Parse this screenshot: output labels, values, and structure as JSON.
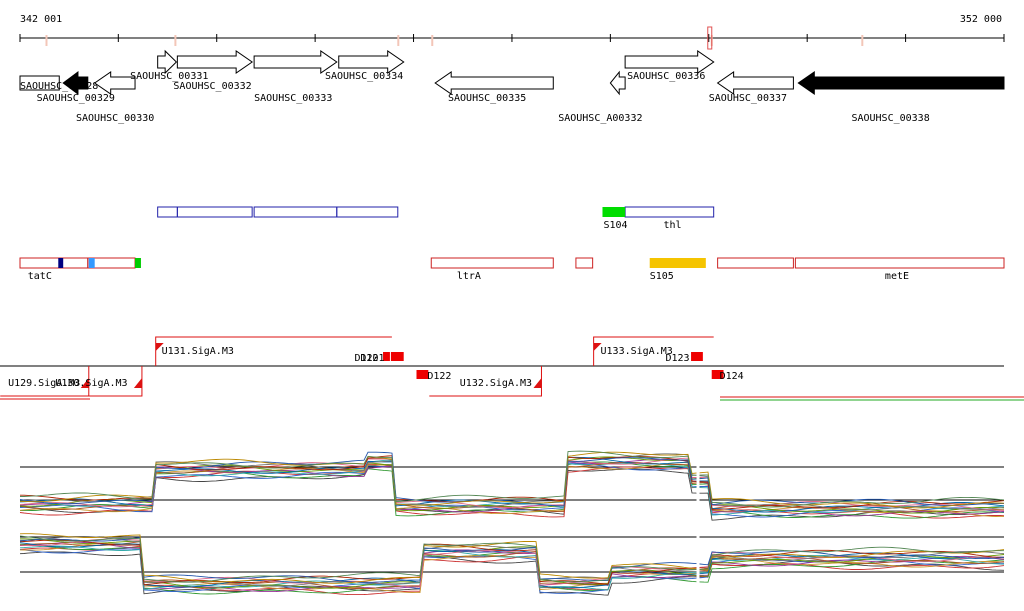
{
  "ruler": {
    "start_label": "342 001",
    "end_label": "352 000",
    "start": 342001,
    "end": 352000,
    "ticks": [
      342001,
      343000,
      344000,
      345000,
      346000,
      347000,
      348000,
      349000,
      350000,
      351000,
      352000
    ],
    "marks": [
      342260,
      343570,
      345835,
      346180,
      349020,
      350550
    ],
    "highlight_box": 349000
  },
  "genes": [
    {
      "label": "SAOUHSC_00328",
      "start": 342001,
      "end": 342400,
      "strand": "box",
      "fill": "white",
      "lane": 1,
      "label_pos": [
        342001,
        1
      ]
    },
    {
      "label": "SAOUHSC_00329",
      "start": 342440,
      "end": 342690,
      "strand": "-",
      "fill": "black",
      "lane": 1,
      "label_pos": [
        342170,
        2
      ]
    },
    {
      "label": "SAOUHSC_00330",
      "start": 342760,
      "end": 343170,
      "strand": "-",
      "fill": "white",
      "lane": 1,
      "label_pos": [
        342570,
        3
      ]
    },
    {
      "label": "SAOUHSC_00331",
      "start": 343400,
      "end": 343590,
      "strand": "+",
      "fill": "white",
      "lane": 0,
      "label_pos": [
        343120,
        0
      ]
    },
    {
      "label": "SAOUHSC_00332",
      "start": 343600,
      "end": 344360,
      "strand": "+",
      "fill": "white",
      "lane": 0,
      "label_pos": [
        343560,
        1
      ]
    },
    {
      "label": "SAOUHSC_00333",
      "start": 344380,
      "end": 345220,
      "strand": "+",
      "fill": "white",
      "lane": 0,
      "label_pos": [
        344380,
        2
      ]
    },
    {
      "label": "SAOUHSC_00334",
      "start": 345240,
      "end": 345900,
      "strand": "+",
      "fill": "white",
      "lane": 0,
      "label_pos": [
        345100,
        0
      ]
    },
    {
      "label": "SAOUHSC_00335",
      "start": 346220,
      "end": 347420,
      "strand": "-",
      "fill": "white",
      "lane": 1,
      "label_pos": [
        346350,
        2
      ]
    },
    {
      "label": "SAOUHSC_A00332",
      "start": 348000,
      "end": 348150,
      "strand": "-",
      "fill": "white",
      "lane": 1,
      "label_pos": [
        347470,
        3
      ]
    },
    {
      "label": "SAOUHSC_00336",
      "start": 348150,
      "end": 349050,
      "strand": "+",
      "fill": "white",
      "lane": 0,
      "label_pos": [
        348170,
        0
      ]
    },
    {
      "label": "SAOUHSC_00337",
      "start": 349090,
      "end": 349860,
      "strand": "-",
      "fill": "white",
      "lane": 1,
      "label_pos": [
        349000,
        2
      ]
    },
    {
      "label": "SAOUHSC_00338",
      "start": 349910,
      "end": 352000,
      "strand": "-",
      "fill": "black",
      "lane": 1,
      "label_pos": [
        350450,
        3
      ]
    }
  ],
  "blue_segments": [
    {
      "start": 343400,
      "end": 343600
    },
    {
      "start": 343600,
      "end": 344360
    },
    {
      "start": 344380,
      "end": 345220
    },
    {
      "start": 345220,
      "end": 345840
    },
    {
      "start": 348150,
      "end": 349050
    }
  ],
  "blue_labels": [
    {
      "label": "S104",
      "pos": 347930
    },
    {
      "label": "thl",
      "pos": 348540
    }
  ],
  "green_box": {
    "start": 347920,
    "end": 348150
  },
  "red_segments": [
    {
      "start": 342001,
      "end": 342400
    },
    {
      "start": 342400,
      "end": 342690
    },
    {
      "start": 342690,
      "end": 343170
    },
    {
      "start": 346180,
      "end": 347420
    },
    {
      "start": 347650,
      "end": 347820
    },
    {
      "start": 349090,
      "end": 349860
    },
    {
      "start": 349880,
      "end": 352000
    }
  ],
  "red_labels": [
    {
      "label": "tatC",
      "pos": 342080
    },
    {
      "label": "ltrA",
      "pos": 346440
    },
    {
      "label": "S105",
      "pos": 348400
    },
    {
      "label": "metE",
      "pos": 350790
    }
  ],
  "red_fills": [
    {
      "start": 342390,
      "end": 342440,
      "color": "#000080"
    },
    {
      "start": 342700,
      "end": 342760,
      "color": "#3399ff"
    },
    {
      "start": 343170,
      "end": 343230,
      "color": "#00cc00"
    },
    {
      "start": 348400,
      "end": 348970,
      "color": "#f5c400"
    }
  ],
  "units": [
    {
      "label": "U129.SigA.M3",
      "start": 341800,
      "end": 342700,
      "level": "low",
      "label_pos": 341880
    },
    {
      "label": "U130.SigA.M3",
      "start": 342700,
      "end": 343240,
      "level": "low",
      "label_pos": 342360
    },
    {
      "label": "U131.SigA.M3",
      "start": 343380,
      "end": 345780,
      "level": "high",
      "label_pos": 343440
    },
    {
      "label": "U132.SigA.M3",
      "start": 346160,
      "end": 347300,
      "level": "low",
      "label_pos": 346470
    },
    {
      "label": "U133.SigA.M3",
      "start": 347830,
      "end": 349050,
      "level": "high",
      "label_pos": 347900
    }
  ],
  "down_boxes": [
    {
      "label": "D120",
      "start": 345690,
      "end": 345760,
      "label_pos": 345400
    },
    {
      "label": "D121",
      "start": 345770,
      "end": 345900,
      "label_pos": 345460
    },
    {
      "label": "D122",
      "start": 346030,
      "end": 346150,
      "label_pos": 346140
    },
    {
      "label": "D123",
      "start": 348820,
      "end": 348940,
      "label_pos": 348560
    },
    {
      "label": "D124",
      "start": 349030,
      "end": 349150,
      "label_pos": 349110
    }
  ],
  "expression": {
    "panel1_segments": [
      {
        "start": 342001,
        "end": 343350,
        "level": 0.25
      },
      {
        "start": 343350,
        "end": 345500,
        "level": 0.78
      },
      {
        "start": 345500,
        "end": 345800,
        "level": 0.9
      },
      {
        "start": 345800,
        "end": 347550,
        "level": 0.22
      },
      {
        "start": 347550,
        "end": 348800,
        "level": 0.9
      },
      {
        "start": 348800,
        "end": 349000,
        "level": 0.6
      },
      {
        "start": 349000,
        "end": 352000,
        "level": 0.18
      }
    ],
    "panel2_segments": [
      {
        "start": 342001,
        "end": 343230,
        "level": 0.72
      },
      {
        "start": 343230,
        "end": 346100,
        "level": 0.12
      },
      {
        "start": 346100,
        "end": 347250,
        "level": 0.6
      },
      {
        "start": 347250,
        "end": 348000,
        "level": 0.12
      },
      {
        "start": 348000,
        "end": 349000,
        "level": 0.3
      },
      {
        "start": 349000,
        "end": 352000,
        "level": 0.5
      }
    ],
    "colors": [
      "#444444",
      "#cc3333",
      "#339933",
      "#3366cc",
      "#cc9933",
      "#993399",
      "#33aaaa",
      "#aa5522",
      "#669900",
      "#0066aa",
      "#dd6688",
      "#777777",
      "#aa2200",
      "#2255aa",
      "#bb8800",
      "#558855"
    ]
  }
}
